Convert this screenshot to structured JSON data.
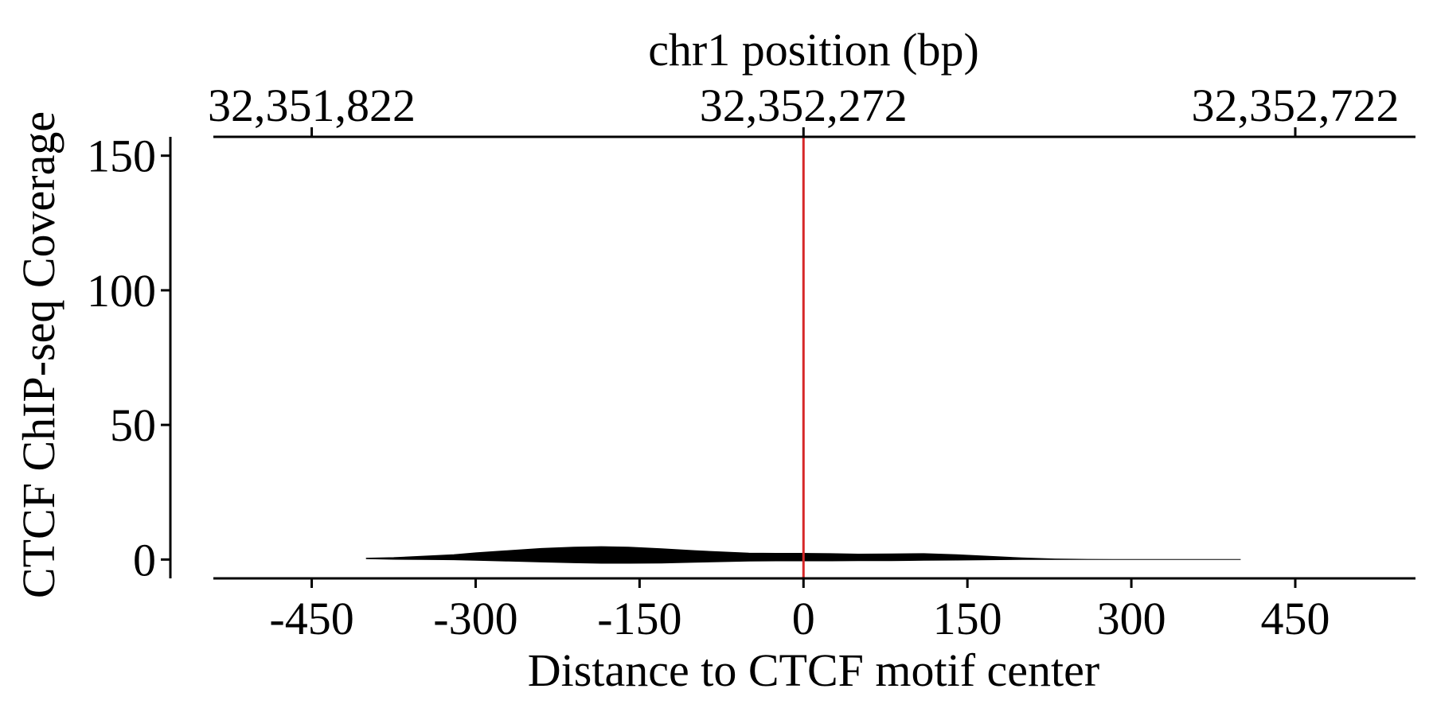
{
  "chart_data": {
    "type": "area",
    "title": "",
    "xlabel": "Distance to CTCF motif center",
    "ylabel": "CTCF ChIP-seq Coverage",
    "top_xlabel": "chr1 position (bp)",
    "xlim": [
      -540,
      560
    ],
    "ylim": [
      -7,
      157
    ],
    "x_ticks": [
      -450,
      -300,
      -150,
      0,
      150,
      300,
      450
    ],
    "x_tick_labels": [
      "-450",
      "-300",
      "-150",
      "0",
      "150",
      "300",
      "450"
    ],
    "y_ticks": [
      0,
      50,
      100,
      150
    ],
    "y_tick_labels": [
      "0",
      "50",
      "100",
      "150"
    ],
    "top_ticks": [
      -450,
      0,
      450
    ],
    "top_tick_labels": [
      "32,351,822",
      "32,352,272",
      "32,352,722"
    ],
    "reference_line": {
      "x": 0,
      "color": "#d62728"
    },
    "series": [
      {
        "color": "#000000",
        "x": [
          -400,
          -375,
          -350,
          -320,
          -300,
          -270,
          -240,
          -210,
          -185,
          -160,
          -130,
          -100,
          -75,
          -50,
          -25,
          0,
          25,
          50,
          80,
          110,
          140,
          170,
          200,
          230,
          260,
          300,
          340,
          400
        ],
        "upper": [
          0.5,
          0.7,
          1.2,
          1.8,
          2.5,
          3.3,
          4.1,
          4.6,
          4.8,
          4.6,
          4.0,
          3.3,
          2.8,
          2.4,
          2.3,
          2.3,
          2.2,
          2.0,
          2.1,
          2.2,
          1.8,
          1.2,
          0.6,
          0.2,
          0.05,
          0.0,
          0.0,
          0.0
        ],
        "lower": [
          0.3,
          0.1,
          0.0,
          -0.1,
          -0.3,
          -0.6,
          -0.9,
          -1.2,
          -1.4,
          -1.4,
          -1.3,
          -1.0,
          -0.8,
          -0.6,
          -0.5,
          -0.5,
          -0.5,
          -0.4,
          -0.4,
          -0.3,
          -0.2,
          -0.1,
          0.0,
          0.0,
          0.0,
          0.0,
          0.0,
          0.0
        ]
      }
    ]
  }
}
